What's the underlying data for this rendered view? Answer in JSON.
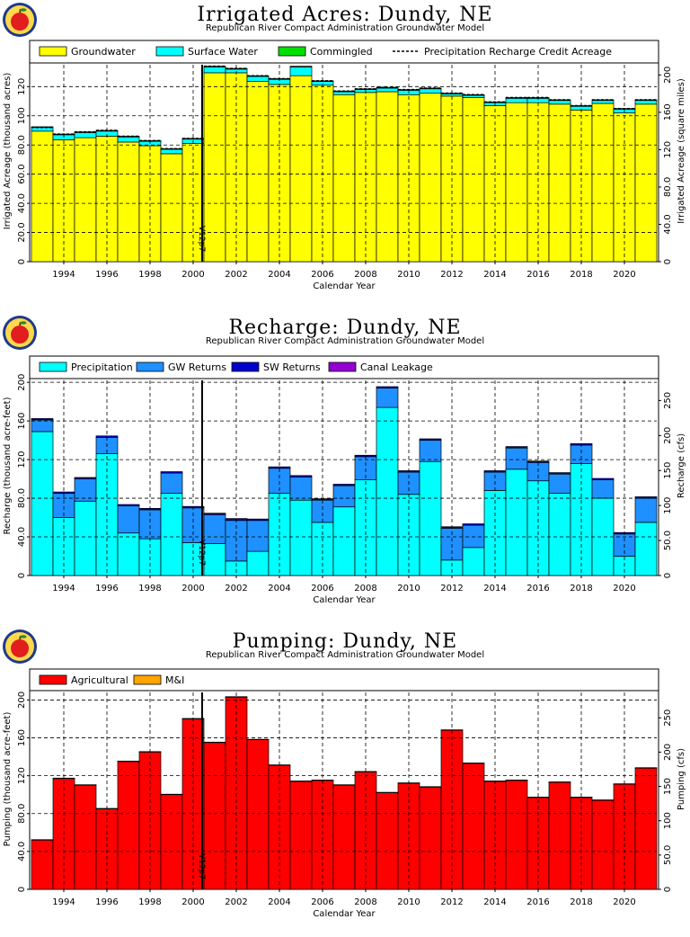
{
  "colors": {
    "groundwater": "#ffff00",
    "surface_water": "#00ffff",
    "commingled": "#00e000",
    "precipitation": "#00ffff",
    "gw_returns": "#1e90ff",
    "sw_returns": "#0000cd",
    "canal_leakage": "#9400d3",
    "agricultural": "#ff0000",
    "mi": "#ffa500"
  },
  "panels": [
    {
      "title": "Irrigated Acres: Dundy, NE",
      "subtitle": "Republican River Compact Administration Groundwater Model",
      "chart_data": {
        "type": "bar",
        "stacked": true,
        "categories": [
          1993,
          1994,
          1995,
          1996,
          1997,
          1998,
          1999,
          2000,
          2001,
          2002,
          2003,
          2004,
          2005,
          2006,
          2007,
          2008,
          2009,
          2010,
          2011,
          2012,
          2013,
          2014,
          2015,
          2016,
          2017,
          2018,
          2019,
          2020,
          2021
        ],
        "series": [
          {
            "name": "Groundwater",
            "color": "#ffff00",
            "values": [
              89.5,
              83.5,
              85,
              86,
              82,
              79.5,
              74,
              81,
              129.5,
              129.5,
              123.5,
              121.5,
              127.5,
              121,
              114.5,
              116,
              116.5,
              114.5,
              115.5,
              113.5,
              112.5,
              107,
              109,
              109,
              108,
              104,
              108.5,
              102,
              108
            ]
          },
          {
            "name": "Surface Water",
            "color": "#00ffff",
            "values": [
              2.5,
              3.5,
              3.5,
              3.5,
              3.5,
              3,
              3,
              3,
              4,
              2.5,
              3.5,
              3.5,
              6,
              2.5,
              2,
              2,
              2.5,
              3,
              3,
              1.5,
              1.5,
              2,
              3,
              3,
              2.5,
              2.5,
              2,
              2.5,
              2.5
            ]
          },
          {
            "name": "Commingled",
            "color": "#00e000",
            "values": [
              0.5,
              0.5,
              0.5,
              0.5,
              0.5,
              0.5,
              0.5,
              0.5,
              0.5,
              0.5,
              0.5,
              0.5,
              0.5,
              0.5,
              0.5,
              0.5,
              0.5,
              0.5,
              0.5,
              0.5,
              0.5,
              0.5,
              0.5,
              0.5,
              0.5,
              0.5,
              0.5,
              0.5,
              0.5
            ]
          }
        ],
        "precipitation_recharge_credit_acreage": [
          92,
          87.5,
          89,
          90,
          86,
          83,
          77.5,
          84.5,
          134,
          132.5,
          127.5,
          125.5,
          0,
          124,
          117,
          118.5,
          119.5,
          118,
          119,
          115.5,
          114.5,
          109.5,
          112.5,
          112.5,
          111,
          107,
          111,
          105,
          111
        ],
        "legend": [
          "Groundwater",
          "Surface Water",
          "Commingled",
          "Precipitation Recharge Credit Acreage"
        ],
        "xlabel": "Calendar Year",
        "ylabel": "Irrigated Acreage (thousand acres)",
        "ylabel_right": "Irrigated Acreage (square miles)",
        "ylim": [
          0,
          135
        ],
        "yticks": [
          0,
          20,
          40,
          60,
          80,
          100,
          120
        ],
        "ytick_labels": [
          "0",
          "20.0",
          "40.0",
          "60.0",
          "80.0",
          "100",
          "120"
        ],
        "yticks_right": [
          0,
          40,
          80,
          120,
          160,
          200
        ],
        "ytick_labels_right": [
          "0",
          "40.0",
          "80.0",
          "120",
          "160",
          "200"
        ],
        "right_scale": 1.5625,
        "xtick_labels": [
          "1994",
          "1996",
          "1998",
          "2000",
          "2002",
          "2004",
          "2006",
          "2008",
          "2010",
          "2012",
          "2014",
          "2016",
          "2018",
          "2020"
        ],
        "marker_label": "V12p7",
        "grid": true
      }
    },
    {
      "title": "Recharge: Dundy, NE",
      "subtitle": "Republican River Compact Administration Groundwater Model",
      "chart_data": {
        "type": "bar",
        "stacked": true,
        "categories": [
          1993,
          1994,
          1995,
          1996,
          1997,
          1998,
          1999,
          2000,
          2001,
          2002,
          2003,
          2004,
          2005,
          2006,
          2007,
          2008,
          2009,
          2010,
          2011,
          2012,
          2013,
          2014,
          2015,
          2016,
          2017,
          2018,
          2019,
          2020,
          2021
        ],
        "series": [
          {
            "name": "Precipitation",
            "color": "#00ffff",
            "values": [
              149,
              60,
              77,
              126,
              44,
              38,
              85,
              34,
              33,
              15,
              25,
              85,
              78,
              55,
              71,
              99,
              174,
              84,
              118,
              16,
              29,
              88,
              110,
              98,
              85,
              116,
              80,
              20,
              55
            ]
          },
          {
            "name": "GW Returns",
            "color": "#1e90ff",
            "values": [
              12,
              25,
              23,
              17,
              28,
              30,
              21,
              36,
              30,
              42,
              32,
              26,
              24,
              23,
              22,
              24,
              20,
              23,
              22,
              33,
              23,
              19,
              22,
              19,
              20,
              19,
              19,
              23,
              25
            ]
          },
          {
            "name": "SW Returns",
            "color": "#0000cd",
            "values": [
              1.5,
              1.5,
              1.5,
              1.5,
              1.5,
              1.5,
              1.5,
              1.5,
              1.5,
              2,
              1.5,
              1.5,
              1.5,
              1.5,
              1.5,
              1.5,
              1.5,
              1.5,
              1.5,
              1.5,
              1.5,
              1.5,
              1.5,
              1.5,
              1.5,
              1.5,
              1.5,
              1.5,
              1.5
            ]
          },
          {
            "name": "Canal Leakage",
            "color": "#9400d3",
            "values": [
              0,
              0,
              0,
              0,
              0,
              0,
              0,
              0,
              0,
              0,
              0,
              0,
              0,
              0,
              0,
              0,
              0,
              0,
              0,
              0,
              0,
              0,
              0,
              0,
              0,
              0,
              0,
              0,
              0
            ]
          }
        ],
        "legend": [
          "Precipitation",
          "GW Returns",
          "SW Returns",
          "Canal Leakage"
        ],
        "xlabel": "Calendar Year",
        "ylabel": "Recharge (thousand acre-feet)",
        "ylabel_right": "Recharge (cfs)",
        "ylim": [
          0,
          202
        ],
        "yticks": [
          0,
          40,
          80,
          120,
          160,
          200
        ],
        "ytick_labels": [
          "0",
          "40.0",
          "80.0",
          "120",
          "160",
          "200"
        ],
        "yticks_right": [
          0,
          50,
          100,
          150,
          200,
          250
        ],
        "ytick_labels_right": [
          "0",
          "50.0",
          "100",
          "150",
          "200",
          "250"
        ],
        "right_scale": 1.38,
        "xtick_labels": [
          "1994",
          "1996",
          "1998",
          "2000",
          "2002",
          "2004",
          "2006",
          "2008",
          "2010",
          "2012",
          "2014",
          "2016",
          "2018",
          "2020"
        ],
        "marker_label": "V12p7",
        "grid": true
      }
    },
    {
      "title": "Pumping: Dundy, NE",
      "subtitle": "Republican River Compact Administration Groundwater Model",
      "chart_data": {
        "type": "bar",
        "stacked": true,
        "categories": [
          1993,
          1994,
          1995,
          1996,
          1997,
          1998,
          1999,
          2000,
          2001,
          2002,
          2003,
          2004,
          2005,
          2006,
          2007,
          2008,
          2009,
          2010,
          2011,
          2012,
          2013,
          2014,
          2015,
          2016,
          2017,
          2018,
          2019,
          2020,
          2021
        ],
        "series": [
          {
            "name": "Agricultural",
            "color": "#ff0000",
            "values": [
              52,
              117,
              110,
              85,
              135,
              145,
              100,
              180,
              155,
              203,
              158,
              131,
              114,
              115,
              110,
              124,
              102,
              112,
              108,
              168,
              133,
              114,
              115,
              97,
              113,
              97,
              94,
              111,
              128
            ]
          },
          {
            "name": "M&I",
            "color": "#ffa500",
            "values": [
              0.5,
              0.5,
              0.5,
              0.5,
              0.5,
              0.5,
              0.5,
              0.5,
              0.5,
              0.5,
              0.5,
              0.5,
              0.5,
              0.5,
              0.5,
              0.5,
              0.5,
              0.5,
              0.5,
              0.5,
              0.5,
              0.5,
              0.5,
              0.5,
              0.5,
              0.5,
              0.5,
              0.5,
              0.5
            ]
          }
        ],
        "legend": [
          "Agricultural",
          "M&I"
        ],
        "xlabel": "Calendar Year",
        "ylabel": "Pumping (thousand acre-feet)",
        "ylabel_right": "Pumping (cfs)",
        "ylim": [
          0,
          208
        ],
        "yticks": [
          0,
          40,
          80,
          120,
          160,
          200
        ],
        "ytick_labels": [
          "0",
          "40.0",
          "80.0",
          "120",
          "160",
          "200"
        ],
        "yticks_right": [
          0,
          50,
          100,
          150,
          200,
          250
        ],
        "ytick_labels_right": [
          "0",
          "50.0",
          "100",
          "150",
          "200",
          "250"
        ],
        "right_scale": 1.38,
        "xtick_labels": [
          "1994",
          "1996",
          "1998",
          "2000",
          "2002",
          "2004",
          "2006",
          "2008",
          "2010",
          "2012",
          "2014",
          "2016",
          "2018",
          "2020"
        ],
        "marker_label": "V12p7",
        "grid": true
      }
    }
  ]
}
